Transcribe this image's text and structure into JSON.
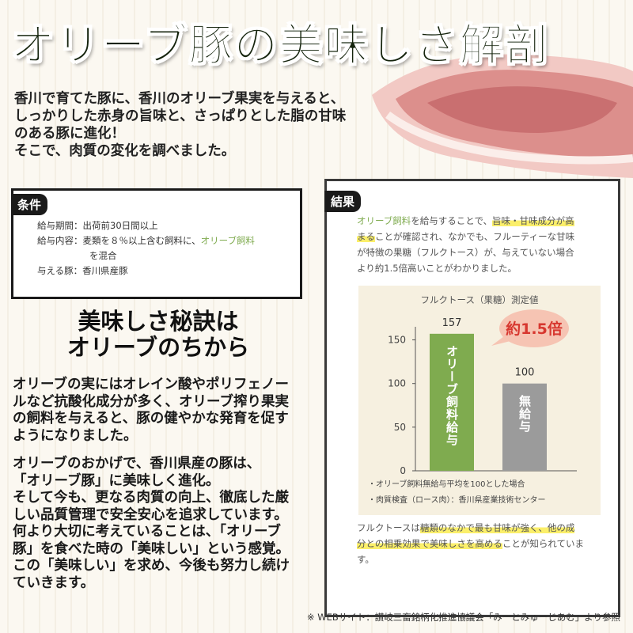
{
  "header": {
    "title": "オリーブ豚の美味しさ解剖"
  },
  "intro": {
    "lines": [
      "香川で育てた豚に、香川のオリーブ果実を与えると、",
      "しっかりした赤身の旨味と、さっぱりとした脂の甘味",
      "のある豚に進化！",
      "そこで、肉質の変化を調べました。"
    ]
  },
  "conditions": {
    "tag": "条件",
    "rows": [
      {
        "label": "給与期間：",
        "value": [
          "出荷前30日間以上"
        ]
      },
      {
        "label": "給与内容：",
        "value": [
          "麦類を８％以上含む飼料に、",
          "オリーブ飼料",
          "を混合"
        ]
      },
      {
        "label": "与える豚：",
        "value": [
          "香川県産豚"
        ]
      }
    ]
  },
  "heading": {
    "lines": [
      "美味しさ秘訣は",
      "オリーブのちから"
    ]
  },
  "body": {
    "paragraphs": [
      {
        "lines": [
          "オリーブの実にはオレイン酸やポリフェノー",
          "ルなど抗酸化成分が多く、オリーブ搾り果実",
          "の飼料を与えると、豚の健やかな発育を促す",
          "ようになりました。"
        ]
      },
      {
        "lines": [
          "オリーブのおかげで、香川県産の豚は、",
          "「オリーブ豚」に美味しく進化。",
          "そして今も、更なる肉質の向上、徹底した厳",
          "しい品質管理で安全安心を追求しています。",
          "何より大切に考えていることは、「オリーブ",
          "豚」を食べた時の「美味しい」という感覚。",
          "この「美味しい」を求め、今後も努力し続け",
          "ていきます。"
        ]
      }
    ]
  },
  "results": {
    "tag": "結果",
    "text": [
      [
        "オリーブ飼料",
        "を給与することで、",
        "旨味・甘味成分が高"
      ],
      [
        "まる",
        "ことが確認され、なかでも、フルーティーな甘味"
      ],
      [
        "が特徴の果糖（フルクトース）が、与えていない場合"
      ],
      [
        "より約1.5倍高いことがわかりました。"
      ]
    ],
    "notes": [
      "・オリーブ飼料無給与平均を100とした場合",
      "・肉質検査（ロース肉）：香川県産業技術センター"
    ],
    "footer": [
      [
        "フルクトースは",
        "糖類のなかで最も甘味が強く、他の成"
      ],
      [
        "分との相乗効果で美味しさを高める",
        "ことが知られていま"
      ],
      [
        "す。"
      ]
    ]
  },
  "chart_data": {
    "type": "bar",
    "title": "フルクトース（果糖）測定値",
    "categories": [
      "オリーブ飼料給与",
      "無給与"
    ],
    "values": [
      157,
      100
    ],
    "colors": [
      "#7fab4f",
      "#9b9b9b"
    ],
    "ylim": [
      0,
      165
    ],
    "yticks": [
      0,
      50,
      100,
      150
    ],
    "annotation": "約1.5倍"
  },
  "footnote": "※ WEBサイト：讃岐三畜銘柄化推進協議会「みーとみゅーじあむ」より参照"
}
